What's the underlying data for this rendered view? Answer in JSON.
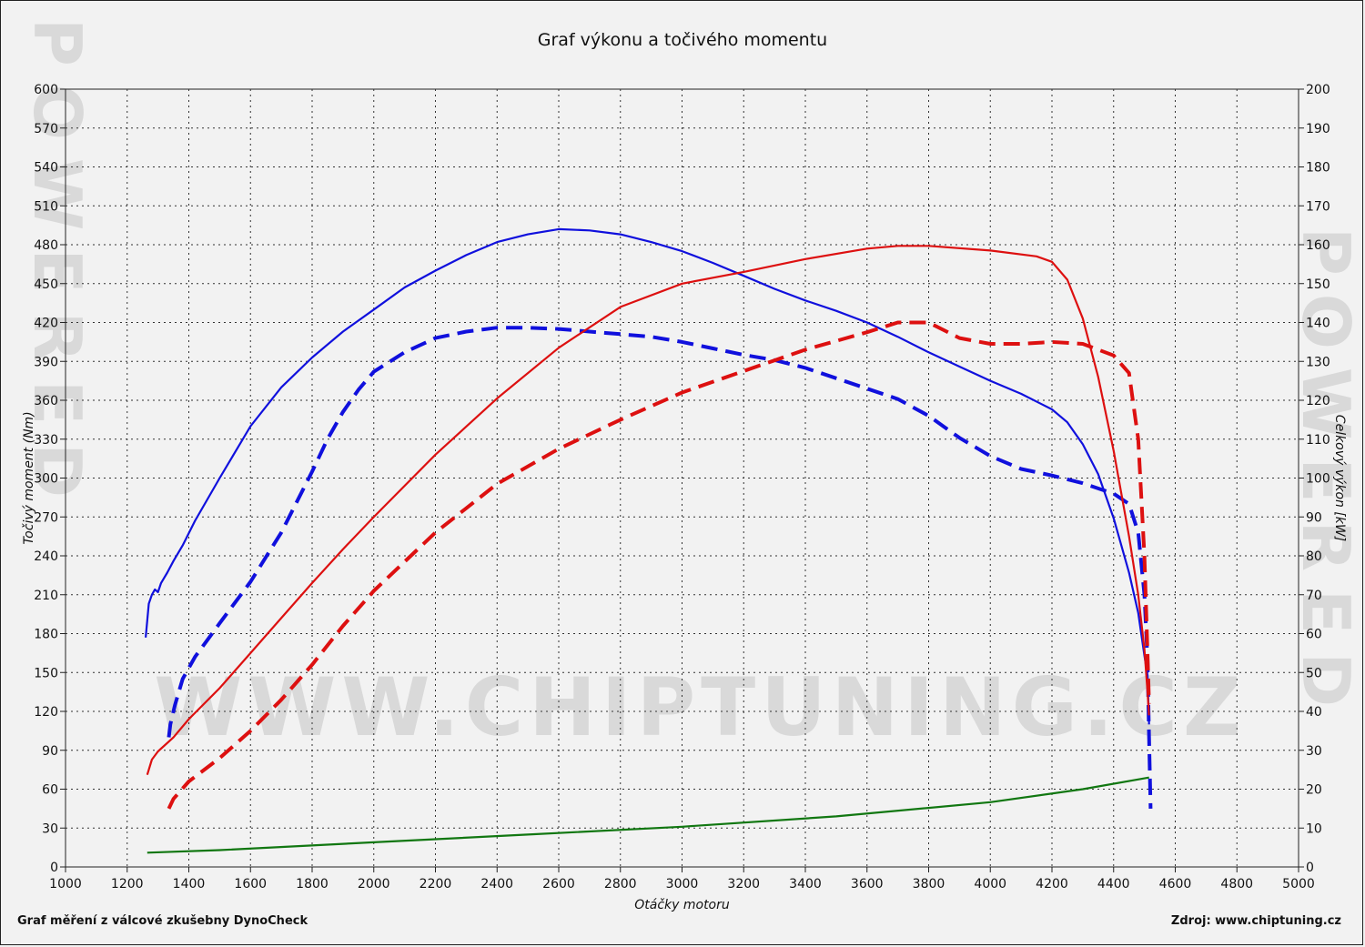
{
  "title": "Graf výkonu a točivého momentu",
  "footer": {
    "left": "Graf měření z válcové zkušebny DynoCheck",
    "right": "Zdroj: www.chiptuning.cz"
  },
  "watermark": {
    "url": "WWW.CHIPTUNING.CZ",
    "side": "POWERED"
  },
  "chart_data": {
    "type": "line",
    "title": "Graf výkonu a točivého momentu",
    "xlabel": "Otáčky motoru",
    "ylabel_left": "Točivý moment (Nm)",
    "ylabel_right": "Celkový výkon [kW]",
    "xlim": [
      1000,
      5000
    ],
    "ylim_left": [
      0,
      600
    ],
    "ylim_right": [
      0,
      200
    ],
    "x_ticks": [
      1000,
      1200,
      1400,
      1600,
      1800,
      2000,
      2200,
      2400,
      2600,
      2800,
      3000,
      3200,
      3400,
      3600,
      3800,
      4000,
      4200,
      4400,
      4600,
      4800,
      5000
    ],
    "y_left_ticks": [
      0,
      30,
      60,
      90,
      120,
      150,
      180,
      210,
      240,
      270,
      300,
      330,
      360,
      390,
      420,
      450,
      480,
      510,
      540,
      570,
      600
    ],
    "y_right_ticks": [
      0,
      10,
      20,
      30,
      40,
      50,
      60,
      70,
      80,
      90,
      100,
      110,
      120,
      130,
      140,
      150,
      160,
      170,
      180,
      190,
      200
    ],
    "grid": true,
    "series": [
      {
        "axis": "left",
        "color": "#1010dd",
        "style": "solid",
        "points": [
          [
            1260,
            177
          ],
          [
            1265,
            190
          ],
          [
            1270,
            203
          ],
          [
            1280,
            210
          ],
          [
            1290,
            214
          ],
          [
            1300,
            212
          ],
          [
            1310,
            219
          ],
          [
            1330,
            227
          ],
          [
            1350,
            236
          ],
          [
            1380,
            248
          ],
          [
            1420,
            267
          ],
          [
            1500,
            300
          ],
          [
            1600,
            340
          ],
          [
            1700,
            370
          ],
          [
            1800,
            393
          ],
          [
            1900,
            413
          ],
          [
            2000,
            430
          ],
          [
            2100,
            447
          ],
          [
            2200,
            460
          ],
          [
            2300,
            472
          ],
          [
            2400,
            482
          ],
          [
            2500,
            488
          ],
          [
            2600,
            492
          ],
          [
            2700,
            491
          ],
          [
            2800,
            488
          ],
          [
            2900,
            482
          ],
          [
            3000,
            475
          ],
          [
            3100,
            466
          ],
          [
            3200,
            456
          ],
          [
            3300,
            446
          ],
          [
            3400,
            437
          ],
          [
            3500,
            429
          ],
          [
            3600,
            420
          ],
          [
            3700,
            409
          ],
          [
            3800,
            397
          ],
          [
            3900,
            386
          ],
          [
            4000,
            375
          ],
          [
            4100,
            365
          ],
          [
            4200,
            353
          ],
          [
            4250,
            343
          ],
          [
            4300,
            326
          ],
          [
            4350,
            303
          ],
          [
            4400,
            269
          ],
          [
            4450,
            227
          ],
          [
            4480,
            196
          ],
          [
            4500,
            163
          ],
          [
            4510,
            148
          ],
          [
            4515,
            110
          ]
        ]
      },
      {
        "axis": "left",
        "color": "#1010dd",
        "style": "dashed",
        "points": [
          [
            1335,
            100
          ],
          [
            1340,
            110
          ],
          [
            1355,
            125
          ],
          [
            1380,
            145
          ],
          [
            1420,
            162
          ],
          [
            1500,
            188
          ],
          [
            1600,
            220
          ],
          [
            1700,
            258
          ],
          [
            1800,
            305
          ],
          [
            1850,
            330
          ],
          [
            1900,
            351
          ],
          [
            1950,
            368
          ],
          [
            2000,
            382
          ],
          [
            2100,
            397
          ],
          [
            2200,
            408
          ],
          [
            2300,
            413
          ],
          [
            2400,
            416
          ],
          [
            2500,
            416
          ],
          [
            2600,
            415
          ],
          [
            2700,
            413
          ],
          [
            2800,
            411
          ],
          [
            2900,
            409
          ],
          [
            3000,
            405
          ],
          [
            3100,
            400
          ],
          [
            3200,
            395
          ],
          [
            3300,
            391
          ],
          [
            3400,
            385
          ],
          [
            3500,
            377
          ],
          [
            3600,
            369
          ],
          [
            3700,
            361
          ],
          [
            3800,
            348
          ],
          [
            3900,
            331
          ],
          [
            4000,
            317
          ],
          [
            4100,
            307
          ],
          [
            4200,
            302
          ],
          [
            4300,
            296
          ],
          [
            4400,
            288
          ],
          [
            4450,
            280
          ],
          [
            4480,
            258
          ],
          [
            4500,
            210
          ],
          [
            4510,
            160
          ],
          [
            4515,
            100
          ],
          [
            4520,
            45
          ]
        ]
      },
      {
        "axis": "right",
        "color": "#dd1010",
        "style": "solid",
        "points": [
          [
            1265,
            23.7
          ],
          [
            1280,
            27.6
          ],
          [
            1300,
            29.7
          ],
          [
            1350,
            33.3
          ],
          [
            1400,
            38.0
          ],
          [
            1500,
            46.0
          ],
          [
            1600,
            55.0
          ],
          [
            1700,
            64.0
          ],
          [
            1800,
            73.0
          ],
          [
            1900,
            81.7
          ],
          [
            2000,
            90.0
          ],
          [
            2200,
            106.0
          ],
          [
            2400,
            120.5
          ],
          [
            2600,
            133.5
          ],
          [
            2800,
            144.0
          ],
          [
            3000,
            150.0
          ],
          [
            3200,
            153.0
          ],
          [
            3400,
            156.3
          ],
          [
            3600,
            159.0
          ],
          [
            3700,
            159.7
          ],
          [
            3800,
            159.7
          ],
          [
            4000,
            158.5
          ],
          [
            4150,
            157.0
          ],
          [
            4200,
            155.6
          ],
          [
            4250,
            151.0
          ],
          [
            4300,
            141.0
          ],
          [
            4350,
            126.0
          ],
          [
            4400,
            107.0
          ],
          [
            4450,
            85.0
          ],
          [
            4480,
            70.0
          ],
          [
            4500,
            56.0
          ],
          [
            4510,
            45.0
          ],
          [
            4515,
            39.0
          ]
        ]
      },
      {
        "axis": "right",
        "color": "#dd1010",
        "style": "dashed",
        "points": [
          [
            1335,
            15
          ],
          [
            1350,
            17.5
          ],
          [
            1400,
            22.0
          ],
          [
            1500,
            28.0
          ],
          [
            1600,
            35.0
          ],
          [
            1700,
            43.0
          ],
          [
            1800,
            52.0
          ],
          [
            1900,
            62.0
          ],
          [
            2000,
            71.0
          ],
          [
            2200,
            86.0
          ],
          [
            2400,
            98.5
          ],
          [
            2600,
            107.5
          ],
          [
            2800,
            115.0
          ],
          [
            3000,
            122.0
          ],
          [
            3200,
            127.5
          ],
          [
            3400,
            133.0
          ],
          [
            3600,
            137.5
          ],
          [
            3700,
            140.0
          ],
          [
            3800,
            140.0
          ],
          [
            3900,
            136.0
          ],
          [
            4000,
            134.5
          ],
          [
            4100,
            134.5
          ],
          [
            4200,
            135.0
          ],
          [
            4300,
            134.5
          ],
          [
            4400,
            131.5
          ],
          [
            4450,
            127.0
          ],
          [
            4480,
            110.0
          ],
          [
            4500,
            80.0
          ],
          [
            4510,
            55.0
          ],
          [
            4515,
            42.0
          ]
        ]
      },
      {
        "axis": "left",
        "color": "#117711",
        "style": "solid",
        "points": [
          [
            1265,
            11
          ],
          [
            1500,
            13
          ],
          [
            2000,
            19
          ],
          [
            2500,
            25
          ],
          [
            3000,
            31
          ],
          [
            3500,
            39
          ],
          [
            4000,
            50
          ],
          [
            4300,
            60
          ],
          [
            4515,
            69
          ]
        ]
      }
    ]
  }
}
